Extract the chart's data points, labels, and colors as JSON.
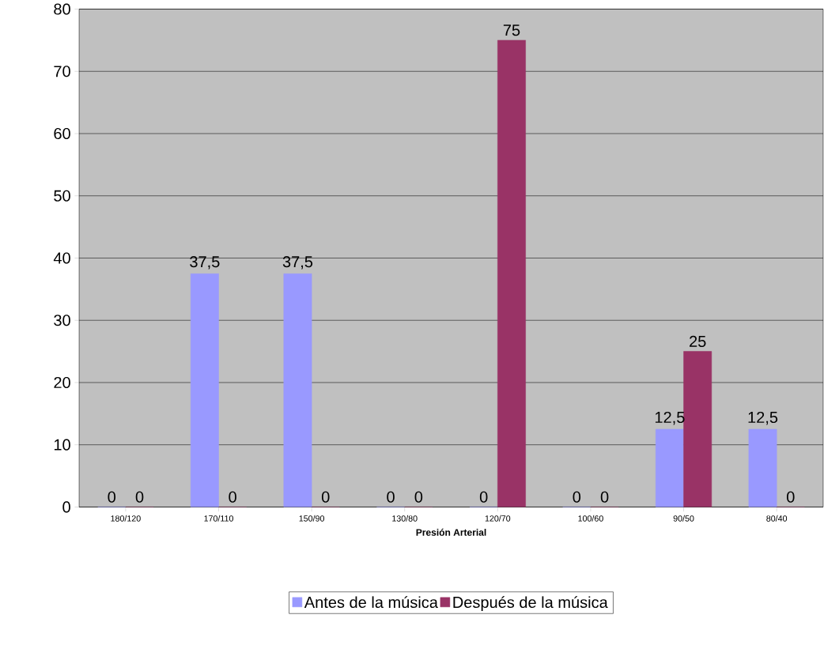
{
  "chart_data": {
    "type": "bar",
    "xlabel": "Presión Arterial",
    "categories": [
      "180/120",
      "170/110",
      "150/90",
      "130/80",
      "120/70",
      "100/60",
      "90/50",
      "80/40"
    ],
    "series": [
      {
        "name": "Antes de la música",
        "color": "#9999ff",
        "values": [
          0,
          37.5,
          37.5,
          0,
          0,
          0,
          12.5,
          12.5
        ],
        "value_labels": [
          "0",
          "37,5",
          "37,5",
          "0",
          "0",
          "0",
          "12,5",
          "12,5"
        ]
      },
      {
        "name": "Después de la música",
        "color": "#993366",
        "values": [
          0,
          0,
          0,
          0,
          75,
          0,
          25,
          0
        ],
        "value_labels": [
          "0",
          "0",
          "0",
          "0",
          "75",
          "0",
          "25",
          "0"
        ]
      }
    ],
    "ylim": [
      0,
      80
    ],
    "yticks": [
      0,
      10,
      20,
      30,
      40,
      50,
      60,
      70,
      80
    ],
    "grid": "y",
    "legend": "bottom"
  }
}
